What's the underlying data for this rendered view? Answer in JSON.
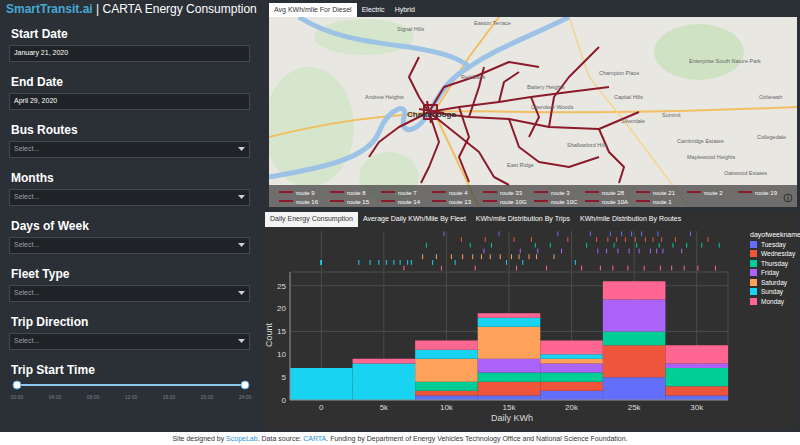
{
  "sidebar": {
    "brand": "SmartTransit.ai",
    "title": "| CARTA Energy Consumption",
    "fields": [
      {
        "label": "Start Date",
        "value": "January 21, 2020"
      },
      {
        "label": "End Date",
        "value": "April 29, 2020"
      },
      {
        "label": "Bus Routes",
        "placeholder": "Select..."
      },
      {
        "label": "Months",
        "placeholder": "Select..."
      },
      {
        "label": "Days of Week",
        "placeholder": "Select..."
      },
      {
        "label": "Fleet Type",
        "placeholder": "Select..."
      },
      {
        "label": "Trip Direction",
        "placeholder": "Select..."
      }
    ],
    "slider": {
      "label": "Trip Start Time",
      "ticks": [
        "00:00",
        "04:00",
        "08:00",
        "12:00",
        "16:00",
        "20:00",
        "24:00"
      ]
    }
  },
  "map": {
    "tabs": [
      "Avg KWh/mile For Diesel",
      "Electric",
      "Hybrid"
    ],
    "color": "#8b1a2b",
    "routes": [
      "route 9",
      "route 8",
      "route 7",
      "route 4",
      "route 33",
      "route 3",
      "route 28",
      "route 21",
      "route 2",
      "route 19",
      "route 16",
      "route 15",
      "route 14",
      "route 13",
      "route 10G",
      "route 10C",
      "route 10A",
      "route 1"
    ],
    "places": [
      "Signal Hills",
      "Easton Terrace",
      "Red Bank",
      "Battery Heights",
      "Champion Place",
      "Capital Hills",
      "Cherokee Woods",
      "Enterprise South Nature Park",
      "Ooltewah",
      "Summit",
      "Silverdale",
      "Cambridge Estates",
      "Collegedale",
      "Maplewood Heights",
      "Oakwood Estates",
      "Shallowford Hills",
      "East Ridge",
      "Chattanooga",
      "Andrew Heights"
    ]
  },
  "chart_tabs": [
    "Daily Energy Consumption",
    "Average Daily KWh/Mile By Fleet",
    "KWh/mile Distribution By Trips",
    "KWh/mile Distribution By Routes"
  ],
  "chart_data": {
    "type": "histogram",
    "x_label": "Daily KWh",
    "y_label": "Count",
    "legend_title": "dayofweekname",
    "legend": "right",
    "stacked": true,
    "grid": true,
    "bins": [
      -2500,
      2500,
      7500,
      12500,
      17500,
      22500,
      27500,
      32500
    ],
    "xlim": [
      -2500,
      32500
    ],
    "xticks": [
      0,
      {
        "value": 5000,
        "label": "5k"
      },
      {
        "value": 10000,
        "label": "10k"
      },
      {
        "value": 15000,
        "label": "15k"
      },
      {
        "value": 20000,
        "label": "20k"
      },
      {
        "value": 25000,
        "label": "25k"
      },
      {
        "value": 30000,
        "label": "30k"
      }
    ],
    "ylim": [
      0,
      28
    ],
    "yticks": [
      0,
      5,
      10,
      15,
      20,
      25
    ],
    "series": [
      {
        "name": "Tuesday",
        "color": "#636efa",
        "values": [
          0,
          0,
          1,
          1,
          2,
          5,
          1
        ],
        "rug": [
          9800,
          14200,
          18900,
          21500,
          23100,
          24000,
          24800,
          25600,
          26900,
          29500
        ]
      },
      {
        "name": "Wednesday",
        "color": "#ef553b",
        "values": [
          0,
          0,
          1,
          3,
          2,
          7,
          2
        ],
        "rug": [
          11200,
          13100,
          15400,
          16800,
          19700,
          22000,
          22900,
          23600,
          24300,
          25100,
          25900,
          26500,
          27200,
          28300,
          30900
        ]
      },
      {
        "name": "Thursday",
        "color": "#00cc96",
        "values": [
          0,
          0,
          2,
          2,
          2,
          3,
          4
        ],
        "rug": [
          8400,
          11900,
          13600,
          17100,
          18300,
          21200,
          23400,
          25200,
          27000,
          28100,
          29200,
          30400,
          31800
        ]
      },
      {
        "name": "Friday",
        "color": "#ab63fa",
        "values": [
          0,
          0,
          0,
          3,
          2,
          7,
          1
        ],
        "rug": [
          13000,
          15900,
          17300,
          19200,
          22100,
          22800,
          23700,
          24600,
          25400,
          26300,
          26800,
          27300,
          28800
        ]
      },
      {
        "name": "Saturday",
        "color": "#ffa15a",
        "values": [
          0,
          0,
          5,
          7,
          1,
          0,
          0
        ],
        "rug": [
          8100,
          9200,
          10400,
          11300,
          12100,
          12800,
          13500,
          14300,
          15200,
          15800,
          16600,
          17200,
          18600
        ]
      },
      {
        "name": "Sunday",
        "color": "#19d3f3",
        "values": [
          7,
          8,
          2,
          2,
          1,
          0,
          0
        ],
        "rug": [
          0,
          0,
          0,
          0,
          0,
          0,
          0,
          3000,
          3900,
          4600,
          5200,
          5800,
          6300,
          6900,
          7200,
          8900,
          10700,
          14800,
          16100,
          20300
        ]
      },
      {
        "name": "Monday",
        "color": "#ff6692",
        "values": [
          0,
          1,
          2,
          1,
          3,
          4,
          4
        ],
        "rug": [
          6600,
          9600,
          12300,
          15600,
          18000,
          20800,
          22300,
          23300,
          24500,
          25800,
          27100,
          28000,
          29000,
          30100,
          31500
        ]
      }
    ]
  },
  "footer": [
    {
      "text": "Site designed by "
    },
    {
      "text": "ScopeLab",
      "link": true
    },
    {
      "text": ". Data source: "
    },
    {
      "text": "CARTA",
      "link": true
    },
    {
      "text": ". Funding by Department of Energy Vehicles Technology Office and National Science Foundation."
    }
  ]
}
